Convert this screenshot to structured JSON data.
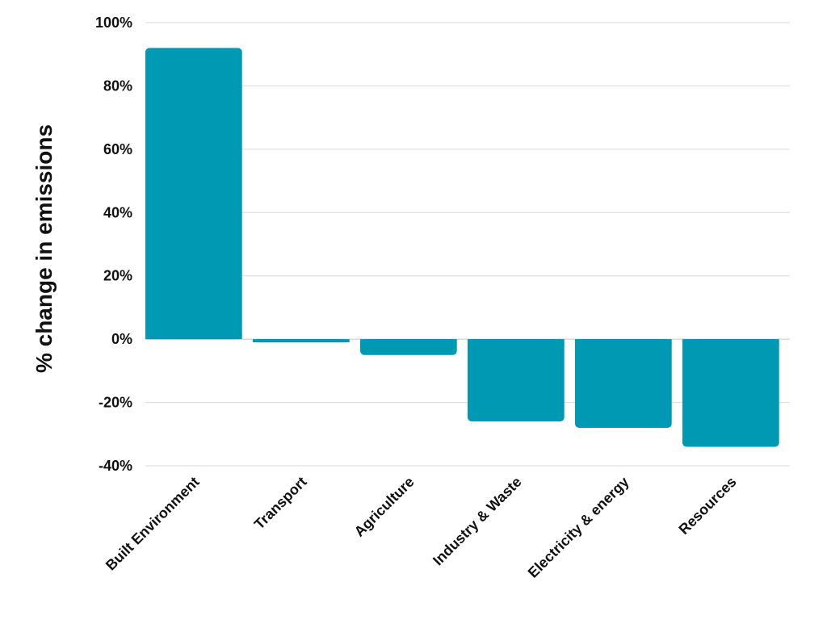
{
  "chart_data": {
    "type": "bar",
    "title": "",
    "xlabel": "",
    "ylabel": "% change in emissions",
    "categories": [
      "Built Environment",
      "Transport",
      "Agriculture",
      "Industry & Waste",
      "Electricity & energy",
      "Resources"
    ],
    "values": [
      92,
      -1,
      -5,
      -26,
      -28,
      -34
    ],
    "unit": "%",
    "ylim": [
      -40,
      100
    ],
    "yticks": [
      100,
      80,
      60,
      40,
      20,
      0,
      -20,
      -40
    ],
    "ytick_labels": [
      "100%",
      "80%",
      "60%",
      "40%",
      "20%",
      "0%",
      "-20%",
      "-40%"
    ],
    "grid": true,
    "legend": "none",
    "bar_color": "#0099b3"
  }
}
